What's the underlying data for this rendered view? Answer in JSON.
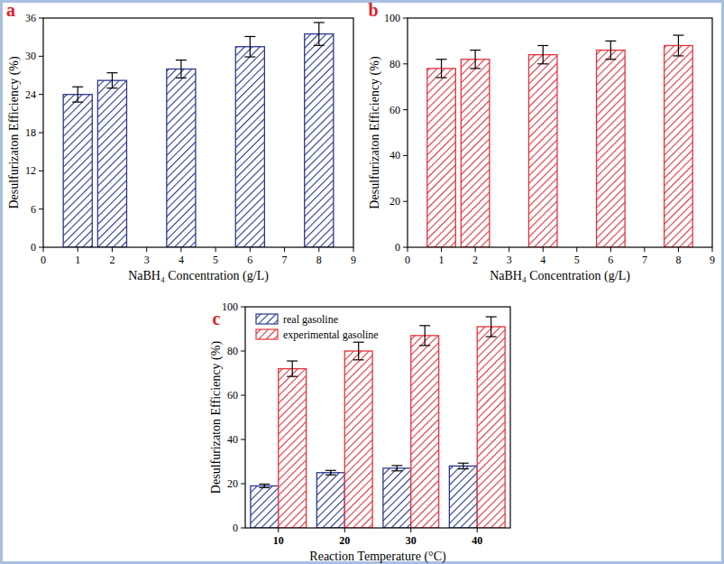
{
  "chart_data": [
    {
      "type": "bar",
      "title": "a",
      "x": [
        1,
        2,
        4,
        6,
        8
      ],
      "values": [
        24,
        26.2,
        28,
        31.5,
        33.5
      ],
      "errors": [
        1.2,
        1.2,
        1.4,
        1.6,
        1.8
      ],
      "color": "#2b3990",
      "xlim": [
        0,
        9
      ],
      "xticks": [
        0,
        1,
        2,
        3,
        4,
        5,
        6,
        7,
        8,
        9
      ],
      "ylim": [
        0,
        36
      ],
      "yticks": [
        0,
        6,
        12,
        18,
        24,
        30,
        36
      ],
      "x_label": "NaBH₄ Concentration (g/L)",
      "y_label": "Desulfurizaton Efficiency (%)"
    },
    {
      "type": "bar",
      "title": "b",
      "x": [
        1,
        2,
        4,
        6,
        8
      ],
      "values": [
        78,
        82,
        84,
        86,
        88
      ],
      "errors": [
        4,
        4,
        4,
        4,
        4.5
      ],
      "color": "#e8323c",
      "xlim": [
        0,
        9
      ],
      "xticks": [
        0,
        1,
        2,
        3,
        4,
        5,
        6,
        7,
        8,
        9
      ],
      "ylim": [
        0,
        100
      ],
      "yticks": [
        0,
        20,
        40,
        60,
        80,
        100
      ],
      "x_label": "NaBH₄ Concentration (g/L)",
      "y_label": "Desulfurizaton Efficiency (%)"
    },
    {
      "type": "bar",
      "title": "c",
      "categories": [
        "10",
        "20",
        "30",
        "40"
      ],
      "series": [
        {
          "name": "real gasoline",
          "color": "#2b3990",
          "values": [
            19,
            25,
            27,
            28
          ],
          "errors": [
            0.8,
            1,
            1.2,
            1.3
          ]
        },
        {
          "name": "experimental gasoline",
          "color": "#e8323c",
          "values": [
            72,
            80,
            87,
            91
          ],
          "errors": [
            3.5,
            4,
            4.5,
            4.5
          ]
        }
      ],
      "ylim": [
        0,
        100
      ],
      "yticks": [
        0,
        20,
        40,
        60,
        80,
        100
      ],
      "legend": "upper left",
      "x_label": "Reaction Temperature (°C)",
      "y_label": "Desulfurizaton Efficiency (%)"
    }
  ]
}
